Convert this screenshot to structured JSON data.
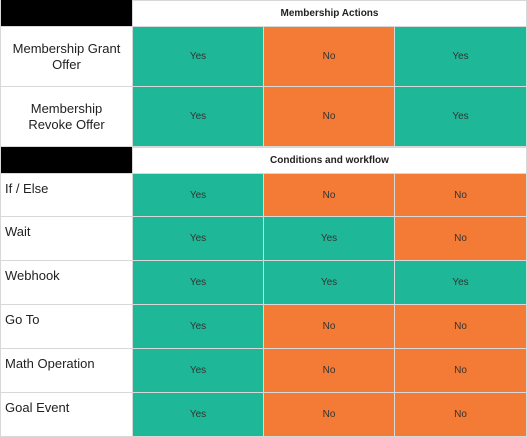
{
  "colors": {
    "yes": "#1eb898",
    "no": "#f47b36",
    "header_block": "#000000"
  },
  "sections": [
    {
      "title": "Membership Actions",
      "rows": [
        {
          "label": "Membership Grant Offer",
          "values": [
            "Yes",
            "No",
            "Yes"
          ]
        },
        {
          "label": "Membership Revoke Offer",
          "values": [
            "Yes",
            "No",
            "Yes"
          ]
        }
      ]
    },
    {
      "title": "Conditions and workflow",
      "rows": [
        {
          "label": "If / Else",
          "values": [
            "Yes",
            "No",
            "No"
          ]
        },
        {
          "label": "Wait",
          "values": [
            "Yes",
            "Yes",
            "No"
          ]
        },
        {
          "label": "Webhook",
          "values": [
            "Yes",
            "Yes",
            "Yes"
          ]
        },
        {
          "label": "Go To",
          "values": [
            "Yes",
            "No",
            "No"
          ]
        },
        {
          "label": "Math Operation",
          "values": [
            "Yes",
            "No",
            "No"
          ]
        },
        {
          "label": "Goal Event",
          "values": [
            "Yes",
            "No",
            "No"
          ]
        }
      ]
    }
  ]
}
